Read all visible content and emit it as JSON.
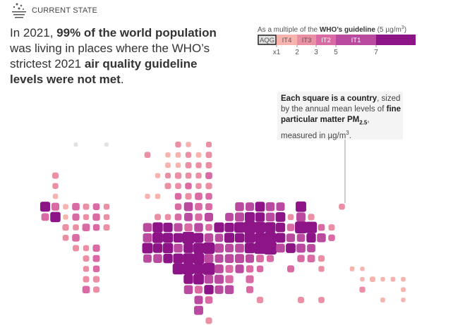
{
  "header": {
    "label": "CURRENT STATE"
  },
  "headline": [
    "In 2021, ",
    "99% of the world population",
    " was living in places where the WHO’s strictest 2021 ",
    "air quality guideline levels were not met",
    "."
  ],
  "legend": {
    "title": [
      "As a multiple of the ",
      "WHO’s guideline",
      " (5 µg/m",
      "3",
      ")"
    ],
    "bands": [
      {
        "label": "AQG",
        "color": "#e2e2e2"
      },
      {
        "label": "IT4",
        "color": "#f7b3ae"
      },
      {
        "label": "IT3",
        "color": "#eb8fa5"
      },
      {
        "label": "IT2",
        "color": "#d96aa3"
      },
      {
        "label": "IT1",
        "color": "#b94aa0"
      },
      {
        "label": null,
        "color": "#8c1487"
      }
    ],
    "ticks": [
      {
        "value": 1,
        "label": "x1"
      },
      2,
      3,
      5,
      7
    ]
  },
  "annotation": [
    "Each square is a country",
    ", sized by the annual mean levels of ",
    "fine particular matter PM",
    "2.5",
    ", measured in µg/m",
    "3",
    "."
  ],
  "map": {
    "rows": [
      {
        "cols": [
          3,
          6,
          13,
          14,
          16
        ],
        "values": [
          0.8,
          0.8,
          2.2,
          1.6,
          2.0
        ]
      },
      {
        "cols": [
          10,
          12,
          13,
          14,
          15,
          16
        ],
        "values": [
          2.4,
          1.5,
          1.8,
          2.2,
          1.8,
          2.6
        ]
      },
      {
        "cols": [
          12,
          13,
          14,
          15,
          16
        ],
        "values": [
          1.8,
          1.6,
          2.5,
          2.2,
          2.6
        ]
      },
      {
        "cols": [
          1,
          11,
          12,
          13,
          14,
          15,
          16
        ],
        "values": [
          2.6,
          1.5,
          2.0,
          2.8,
          2.4,
          2.2,
          3.2
        ]
      },
      {
        "cols": [
          1,
          12,
          13,
          14,
          15,
          16
        ],
        "values": [
          2.2,
          2.6,
          2.4,
          3.0,
          2.2,
          2.8
        ]
      },
      {
        "cols": [
          1,
          10,
          11,
          13,
          14,
          15,
          16
        ],
        "values": [
          1.6,
          1.5,
          1.6,
          3.0,
          2.8,
          4.0,
          3.0
        ]
      },
      {
        "cols": [
          0,
          1,
          2,
          3,
          4,
          5,
          6,
          13,
          14,
          15,
          16,
          19,
          20,
          21,
          22,
          23,
          25,
          29
        ],
        "values": [
          8,
          4.5,
          1.8,
          4,
          2.6,
          3.2,
          2.2,
          3,
          6,
          4,
          3.4,
          6,
          5.5,
          7.5,
          6,
          5.5,
          9,
          2.4
        ]
      },
      {
        "cols": [
          0,
          1,
          2,
          3,
          4,
          5,
          6,
          11,
          12,
          13,
          14,
          15,
          16,
          18,
          19,
          20,
          21,
          22,
          23,
          24,
          25,
          26
        ],
        "values": [
          4.2,
          8.5,
          1.5,
          3.6,
          2.2,
          3.8,
          2.2,
          2.6,
          2.4,
          3.2,
          5.2,
          3.8,
          5.5,
          5.2,
          6.5,
          8,
          7,
          6,
          7.5,
          2.4,
          6.5,
          2.8
        ]
      },
      {
        "cols": [
          2,
          3,
          4,
          5,
          6,
          10,
          11,
          12,
          13,
          14,
          15,
          16,
          17,
          18,
          19,
          20,
          21,
          22,
          23,
          24,
          25,
          26,
          27,
          28
        ],
        "values": [
          2.8,
          2.4,
          4.2,
          3,
          2.6,
          6,
          8.5,
          7,
          5.5,
          4.8,
          6,
          3.2,
          8,
          7,
          9,
          12,
          10,
          9,
          7,
          4,
          12,
          11,
          3.2,
          2.6
        ]
      },
      {
        "cols": [
          2,
          3,
          10,
          11,
          12,
          13,
          14,
          15,
          16,
          17,
          18,
          19,
          20,
          21,
          22,
          23,
          24,
          25,
          26,
          27,
          28
        ],
        "values": [
          2.4,
          4,
          6.5,
          9,
          8,
          7,
          12,
          7.5,
          6,
          5,
          8,
          7,
          9,
          8.5,
          11,
          7.5,
          5.5,
          5,
          7,
          6,
          3
        ]
      },
      {
        "cols": [
          3,
          4,
          5,
          10,
          11,
          12,
          13,
          14,
          15,
          16,
          17,
          18,
          19,
          20,
          21,
          22,
          23,
          24,
          25,
          26
        ],
        "values": [
          2.6,
          2.2,
          3.6,
          9,
          7,
          8.5,
          6,
          7.5,
          9,
          11,
          6.5,
          5.5,
          6.2,
          8.5,
          11,
          14,
          6,
          7.5,
          6.2,
          5.2
        ]
      },
      {
        "cols": [
          4,
          5,
          10,
          11,
          12,
          13,
          14,
          15,
          16,
          17,
          18,
          19,
          20,
          21,
          22,
          25,
          26,
          27
        ],
        "values": [
          2.6,
          3.4,
          5.2,
          6,
          7,
          8,
          9,
          10,
          6.5,
          5.5,
          6,
          6.5,
          5.5,
          4.2,
          3.6,
          3.8,
          4.2,
          2.8
        ]
      },
      {
        "cols": [
          4,
          5,
          13,
          14,
          15,
          16,
          17,
          18,
          19,
          20,
          21,
          24,
          27,
          30,
          31
        ],
        "values": [
          2.2,
          3,
          10,
          11,
          9,
          12,
          6,
          4.5,
          5.6,
          3.8,
          3,
          3.4,
          2.2,
          1.2,
          1.0
        ]
      },
      {
        "cols": [
          4,
          5,
          14,
          15,
          16,
          17,
          18,
          20,
          31,
          32,
          33,
          34,
          35
        ],
        "values": [
          2.6,
          2.8,
          7,
          9,
          6,
          6.5,
          4.8,
          4.5,
          1.0,
          1.8,
          1.0,
          1.2,
          1.1
        ]
      },
      {
        "cols": [
          4,
          5,
          14,
          15,
          16,
          17,
          18,
          20,
          31,
          35
        ],
        "values": [
          4,
          2.6,
          6,
          4.5,
          7,
          5.5,
          6,
          3.6,
          2.2,
          1.2
        ]
      },
      {
        "cols": [
          15,
          16,
          21,
          25,
          27,
          33,
          35
        ],
        "values": [
          5.5,
          4,
          2.8,
          2.6,
          2.4,
          1.2,
          1.0
        ]
      },
      {
        "cols": [
          15
        ],
        "values": [
          6.5
        ]
      },
      {
        "cols": [
          16
        ],
        "values": [
          2.8
        ]
      }
    ]
  }
}
